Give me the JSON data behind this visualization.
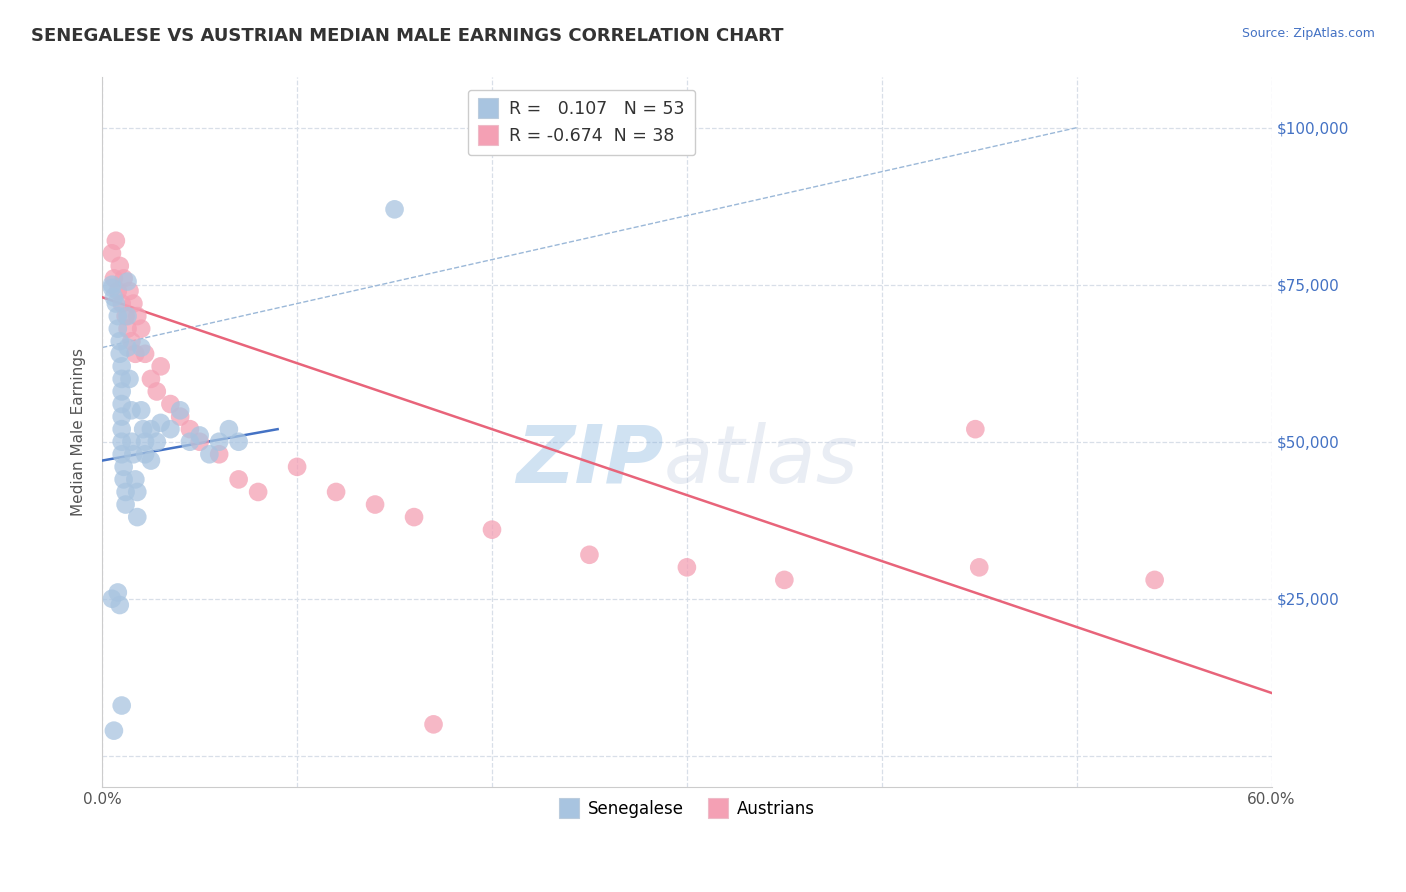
{
  "title": "SENEGALESE VS AUSTRIAN MEDIAN MALE EARNINGS CORRELATION CHART",
  "source_text": "Source: ZipAtlas.com",
  "ylabel": "Median Male Earnings",
  "xlim": [
    0.0,
    0.6
  ],
  "ylim": [
    -5000,
    108000
  ],
  "xticks": [
    0.0,
    0.1,
    0.2,
    0.3,
    0.4,
    0.5,
    0.6
  ],
  "xticklabels": [
    "0.0%",
    "",
    "",
    "",
    "",
    "",
    "60.0%"
  ],
  "ytick_values": [
    0,
    25000,
    50000,
    75000,
    100000
  ],
  "ytick_labels": [
    "",
    "$25,000",
    "$50,000",
    "$75,000",
    "$100,000"
  ],
  "blue_color": "#a8c4e0",
  "pink_color": "#f4a0b4",
  "blue_line_color": "#4472c4",
  "pink_line_color": "#e8647a",
  "diag_line_color": "#9bb8d8",
  "grid_color": "#d8dfe8",
  "background_color": "#ffffff",
  "watermark_color": "#cdd8ec",
  "legend_R_blue": "0.107",
  "legend_N_blue": "53",
  "legend_R_pink": "-0.674",
  "legend_N_pink": "38",
  "blue_scatter_x": [
    0.005,
    0.005,
    0.006,
    0.007,
    0.008,
    0.008,
    0.009,
    0.009,
    0.01,
    0.01,
    0.01,
    0.01,
    0.01,
    0.01,
    0.01,
    0.01,
    0.011,
    0.011,
    0.012,
    0.012,
    0.013,
    0.013,
    0.013,
    0.014,
    0.015,
    0.015,
    0.016,
    0.017,
    0.018,
    0.018,
    0.02,
    0.02,
    0.021,
    0.022,
    0.022,
    0.025,
    0.025,
    0.028,
    0.03,
    0.035,
    0.04,
    0.045,
    0.05,
    0.055,
    0.06,
    0.065,
    0.07,
    0.008,
    0.009,
    0.01,
    0.005,
    0.006,
    0.15
  ],
  "blue_scatter_y": [
    75000,
    74500,
    73000,
    72000,
    70000,
    68000,
    66000,
    64000,
    62000,
    60000,
    58000,
    56000,
    54000,
    52000,
    50000,
    48000,
    46000,
    44000,
    42000,
    40000,
    75500,
    70000,
    65000,
    60000,
    55000,
    50000,
    48000,
    44000,
    42000,
    38000,
    65000,
    55000,
    52000,
    50000,
    48000,
    52000,
    47000,
    50000,
    53000,
    52000,
    55000,
    50000,
    51000,
    48000,
    50000,
    52000,
    50000,
    26000,
    24000,
    8000,
    25000,
    4000,
    87000
  ],
  "pink_scatter_x": [
    0.005,
    0.006,
    0.007,
    0.008,
    0.009,
    0.01,
    0.011,
    0.012,
    0.013,
    0.014,
    0.015,
    0.016,
    0.017,
    0.018,
    0.02,
    0.022,
    0.025,
    0.028,
    0.03,
    0.035,
    0.04,
    0.045,
    0.05,
    0.06,
    0.07,
    0.08,
    0.1,
    0.12,
    0.14,
    0.16,
    0.2,
    0.25,
    0.3,
    0.35,
    0.45,
    0.54,
    0.448,
    0.17
  ],
  "pink_scatter_y": [
    80000,
    76000,
    82000,
    74000,
    78000,
    72000,
    76000,
    70000,
    68000,
    74000,
    66000,
    72000,
    64000,
    70000,
    68000,
    64000,
    60000,
    58000,
    62000,
    56000,
    54000,
    52000,
    50000,
    48000,
    44000,
    42000,
    46000,
    42000,
    40000,
    38000,
    36000,
    32000,
    30000,
    28000,
    30000,
    28000,
    52000,
    5000
  ],
  "blue_trend_x": [
    0.0,
    0.09
  ],
  "blue_trend_y": [
    47000,
    52000
  ],
  "pink_trend_x": [
    0.0,
    0.6
  ],
  "pink_trend_y": [
    73000,
    10000
  ],
  "diag_line_x": [
    0.0,
    0.5
  ],
  "diag_line_y": [
    65000,
    100000
  ]
}
